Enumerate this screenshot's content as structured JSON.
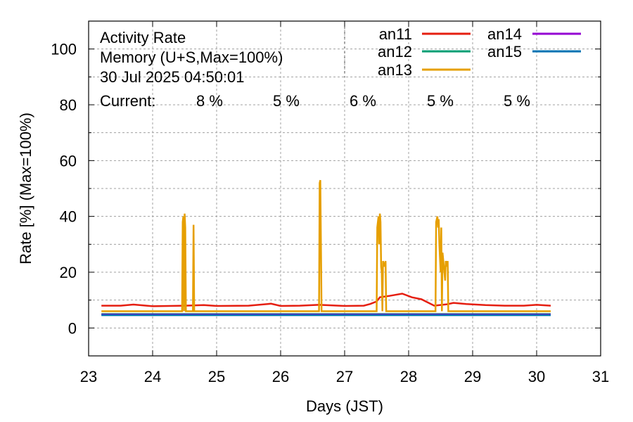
{
  "chart_data": {
    "type": "line",
    "title_lines": [
      "Activity Rate",
      "Memory (U+S,Max=100%)",
      "30 Jul 2025 04:50:01"
    ],
    "current_label": "Current:",
    "xlabel": "Days (JST)",
    "ylabel": "Rate [%]  (Max=100%)",
    "xlim": [
      23,
      31
    ],
    "ylim": [
      -10,
      110
    ],
    "x_ticks": [
      23,
      24,
      25,
      26,
      27,
      28,
      29,
      30,
      31
    ],
    "y_ticks": [
      0,
      20,
      40,
      60,
      80,
      100
    ],
    "grid": true,
    "legend_position": "top-right",
    "series": [
      {
        "name": "an11",
        "color": "#e51e10",
        "current": "8 %",
        "points": [
          [
            23.2,
            8
          ],
          [
            23.5,
            8
          ],
          [
            23.7,
            8.4
          ],
          [
            24.0,
            7.8
          ],
          [
            24.5,
            8
          ],
          [
            24.8,
            8.2
          ],
          [
            25.0,
            7.9
          ],
          [
            25.5,
            8
          ],
          [
            25.85,
            8.7
          ],
          [
            26.0,
            7.9
          ],
          [
            26.3,
            8
          ],
          [
            26.6,
            8.3
          ],
          [
            27.0,
            7.9
          ],
          [
            27.3,
            8
          ],
          [
            27.4,
            8.6
          ],
          [
            27.5,
            9.5
          ],
          [
            27.55,
            11
          ],
          [
            27.7,
            11.5
          ],
          [
            27.9,
            12.3
          ],
          [
            28.05,
            11
          ],
          [
            28.2,
            10.3
          ],
          [
            28.4,
            8
          ],
          [
            28.6,
            8.5
          ],
          [
            28.7,
            9
          ],
          [
            28.9,
            8.6
          ],
          [
            29.2,
            8.2
          ],
          [
            29.5,
            8
          ],
          [
            29.8,
            8
          ],
          [
            30.0,
            8.3
          ],
          [
            30.22,
            8
          ]
        ]
      },
      {
        "name": "an12",
        "color": "#009e73",
        "current": "5 %",
        "points": [
          [
            23.2,
            5
          ],
          [
            30.22,
            5
          ]
        ]
      },
      {
        "name": "an13",
        "color": "#e69f00",
        "current": "6 %",
        "points": [
          [
            23.2,
            6
          ],
          [
            24.46,
            6
          ],
          [
            24.47,
            38
          ],
          [
            24.48,
            40
          ],
          [
            24.49,
            6
          ],
          [
            24.5,
            41
          ],
          [
            24.51,
            36
          ],
          [
            24.52,
            6
          ],
          [
            24.63,
            6
          ],
          [
            24.64,
            37
          ],
          [
            24.65,
            6
          ],
          [
            26.6,
            6
          ],
          [
            26.61,
            52
          ],
          [
            26.62,
            53
          ],
          [
            26.63,
            30
          ],
          [
            26.64,
            6
          ],
          [
            27.5,
            6
          ],
          [
            27.51,
            36
          ],
          [
            27.53,
            40
          ],
          [
            27.54,
            30
          ],
          [
            27.55,
            41
          ],
          [
            27.56,
            38
          ],
          [
            27.57,
            22
          ],
          [
            27.58,
            20
          ],
          [
            27.59,
            6
          ],
          [
            27.6,
            24
          ],
          [
            27.62,
            22
          ],
          [
            27.64,
            24
          ],
          [
            27.65,
            6
          ],
          [
            28.42,
            6
          ],
          [
            28.43,
            38
          ],
          [
            28.45,
            40
          ],
          [
            28.46,
            36
          ],
          [
            28.47,
            39
          ],
          [
            28.48,
            30
          ],
          [
            28.5,
            20
          ],
          [
            28.51,
            36
          ],
          [
            28.52,
            6
          ],
          [
            28.53,
            27
          ],
          [
            28.55,
            22
          ],
          [
            28.57,
            17
          ],
          [
            28.58,
            24
          ],
          [
            28.6,
            22
          ],
          [
            28.61,
            24
          ],
          [
            28.62,
            6
          ],
          [
            30.22,
            6
          ]
        ]
      },
      {
        "name": "an14",
        "color": "#9400d3",
        "current": "5 %",
        "points": [
          [
            23.2,
            4.8
          ],
          [
            30.22,
            4.8
          ]
        ]
      },
      {
        "name": "an15",
        "color": "#0072b2",
        "current": "5 %",
        "points": [
          [
            23.2,
            4.6
          ],
          [
            30.22,
            4.6
          ]
        ]
      }
    ]
  }
}
